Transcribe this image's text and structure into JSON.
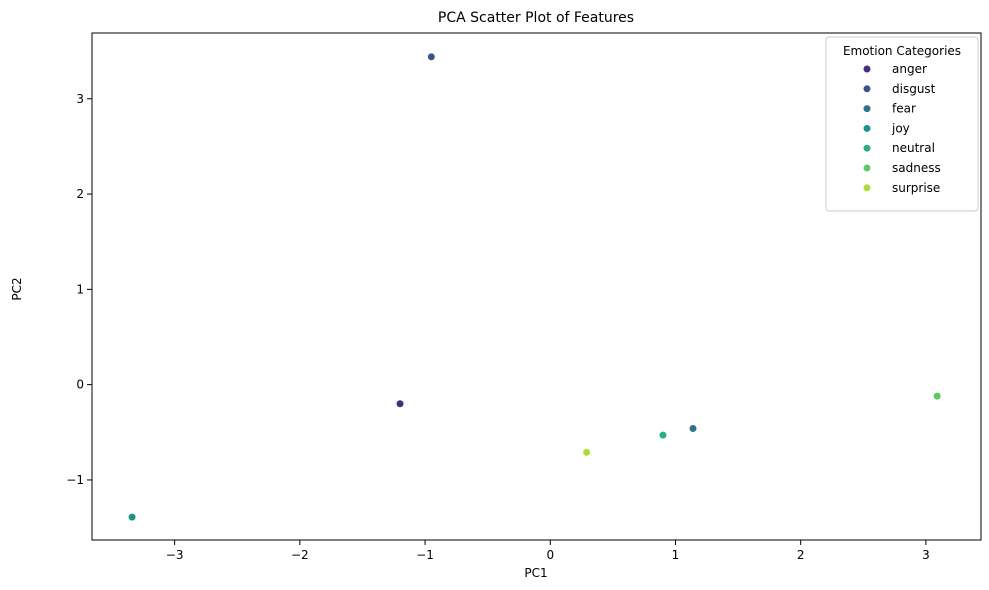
{
  "chart_data": {
    "type": "scatter",
    "title": "PCA Scatter Plot of Features",
    "xlabel": "PC1",
    "ylabel": "PC2",
    "xlim": [
      -3.66,
      3.44
    ],
    "ylim": [
      -1.63,
      3.69
    ],
    "xticks": [
      -3,
      -2,
      -1,
      0,
      1,
      2,
      3
    ],
    "yticks": [
      -1,
      0,
      1,
      2,
      3
    ],
    "xtick_labels": [
      "−3",
      "−2",
      "−1",
      "0",
      "1",
      "2",
      "3"
    ],
    "ytick_labels": [
      "−1",
      "0",
      "1",
      "2",
      "3"
    ],
    "grid": false,
    "legend": {
      "title": "Emotion Categories",
      "position": "top-right"
    },
    "series": [
      {
        "name": "anger",
        "color": "#472d7b",
        "x": [
          -1.2
        ],
        "y": [
          -0.2
        ]
      },
      {
        "name": "disgust",
        "color": "#3b528b",
        "x": [
          -0.95
        ],
        "y": [
          3.44
        ]
      },
      {
        "name": "fear",
        "color": "#2c728e",
        "x": [
          1.14
        ],
        "y": [
          -0.46
        ]
      },
      {
        "name": "joy",
        "color": "#21918c",
        "x": [
          -3.34
        ],
        "y": [
          -1.39
        ]
      },
      {
        "name": "neutral",
        "color": "#28ae80",
        "x": [
          0.9
        ],
        "y": [
          -0.53
        ]
      },
      {
        "name": "sadness",
        "color": "#5ec962",
        "x": [
          3.09
        ],
        "y": [
          -0.12
        ]
      },
      {
        "name": "surprise",
        "color": "#addc30",
        "x": [
          0.29
        ],
        "y": [
          -0.71
        ]
      }
    ]
  }
}
